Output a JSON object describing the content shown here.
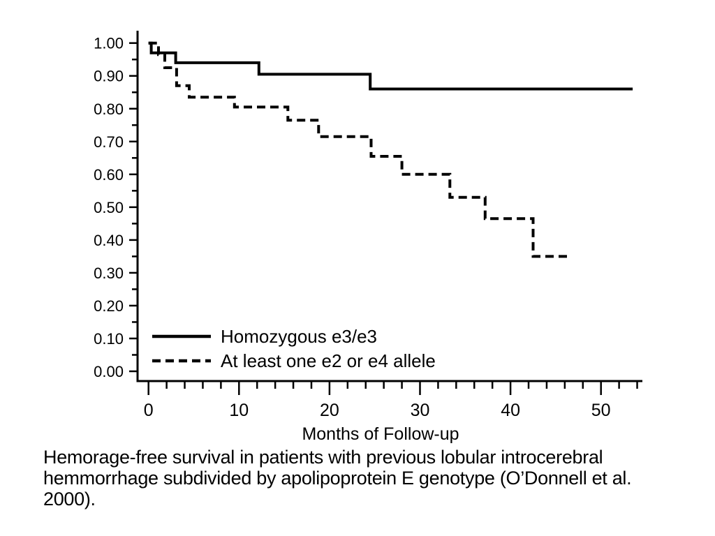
{
  "chart_data": {
    "type": "line",
    "subtype": "kaplan-meier-step",
    "title": "",
    "xlabel": "Months of Follow-up",
    "ylabel": "",
    "xlim": [
      0,
      54.5
    ],
    "ylim": [
      0.0,
      1.0
    ],
    "x_major_ticks": [
      0,
      10,
      20,
      30,
      40,
      50
    ],
    "x_minor_tick_step": 2,
    "x_minor_tick_max": 54,
    "y_major_ticks": [
      "0.00",
      "0.10",
      "0.20",
      "0.30",
      "0.40",
      "0.50",
      "0.60",
      "0.70",
      "0.80",
      "0.90",
      "1.00"
    ],
    "y_minor_tick_step": 0.05,
    "grid": false,
    "legend_position": "lower-left-inside",
    "series": [
      {
        "name": "Homozygous e3/e3",
        "line_style": "solid",
        "color": "#000000",
        "steps": [
          [
            0,
            1.0
          ],
          [
            0.3,
            0.97
          ],
          [
            3.0,
            0.94
          ],
          [
            12.2,
            0.905
          ],
          [
            24.5,
            0.86
          ]
        ],
        "end_month": 53.5
      },
      {
        "name": "At least one e2 or e4 allele",
        "line_style": "dashed",
        "color": "#000000",
        "steps": [
          [
            0,
            1.0
          ],
          [
            1.1,
            0.965
          ],
          [
            1.8,
            0.925
          ],
          [
            3.1,
            0.87
          ],
          [
            4.5,
            0.835
          ],
          [
            9.5,
            0.805
          ],
          [
            15.4,
            0.765
          ],
          [
            18.8,
            0.715
          ],
          [
            24.6,
            0.655
          ],
          [
            28.0,
            0.6
          ],
          [
            33.3,
            0.53
          ],
          [
            37.2,
            0.465
          ],
          [
            42.5,
            0.35
          ]
        ],
        "end_month": 46.3
      }
    ],
    "legend": [
      {
        "label": "Homozygous e3/e3",
        "line_style": "solid"
      },
      {
        "label": "At least one e2 or e4 allele",
        "line_style": "dashed"
      }
    ]
  },
  "caption": {
    "lines": [
      "Hemorage-free survival in patients with previous lobular introcerebral",
      "hemmorrhage subdivided by apolipoprotein E genotype (O’Donnell et al.",
      "2000)."
    ]
  },
  "colors": {
    "background": "#ffffff",
    "axis": "#000000",
    "text": "#000000"
  }
}
